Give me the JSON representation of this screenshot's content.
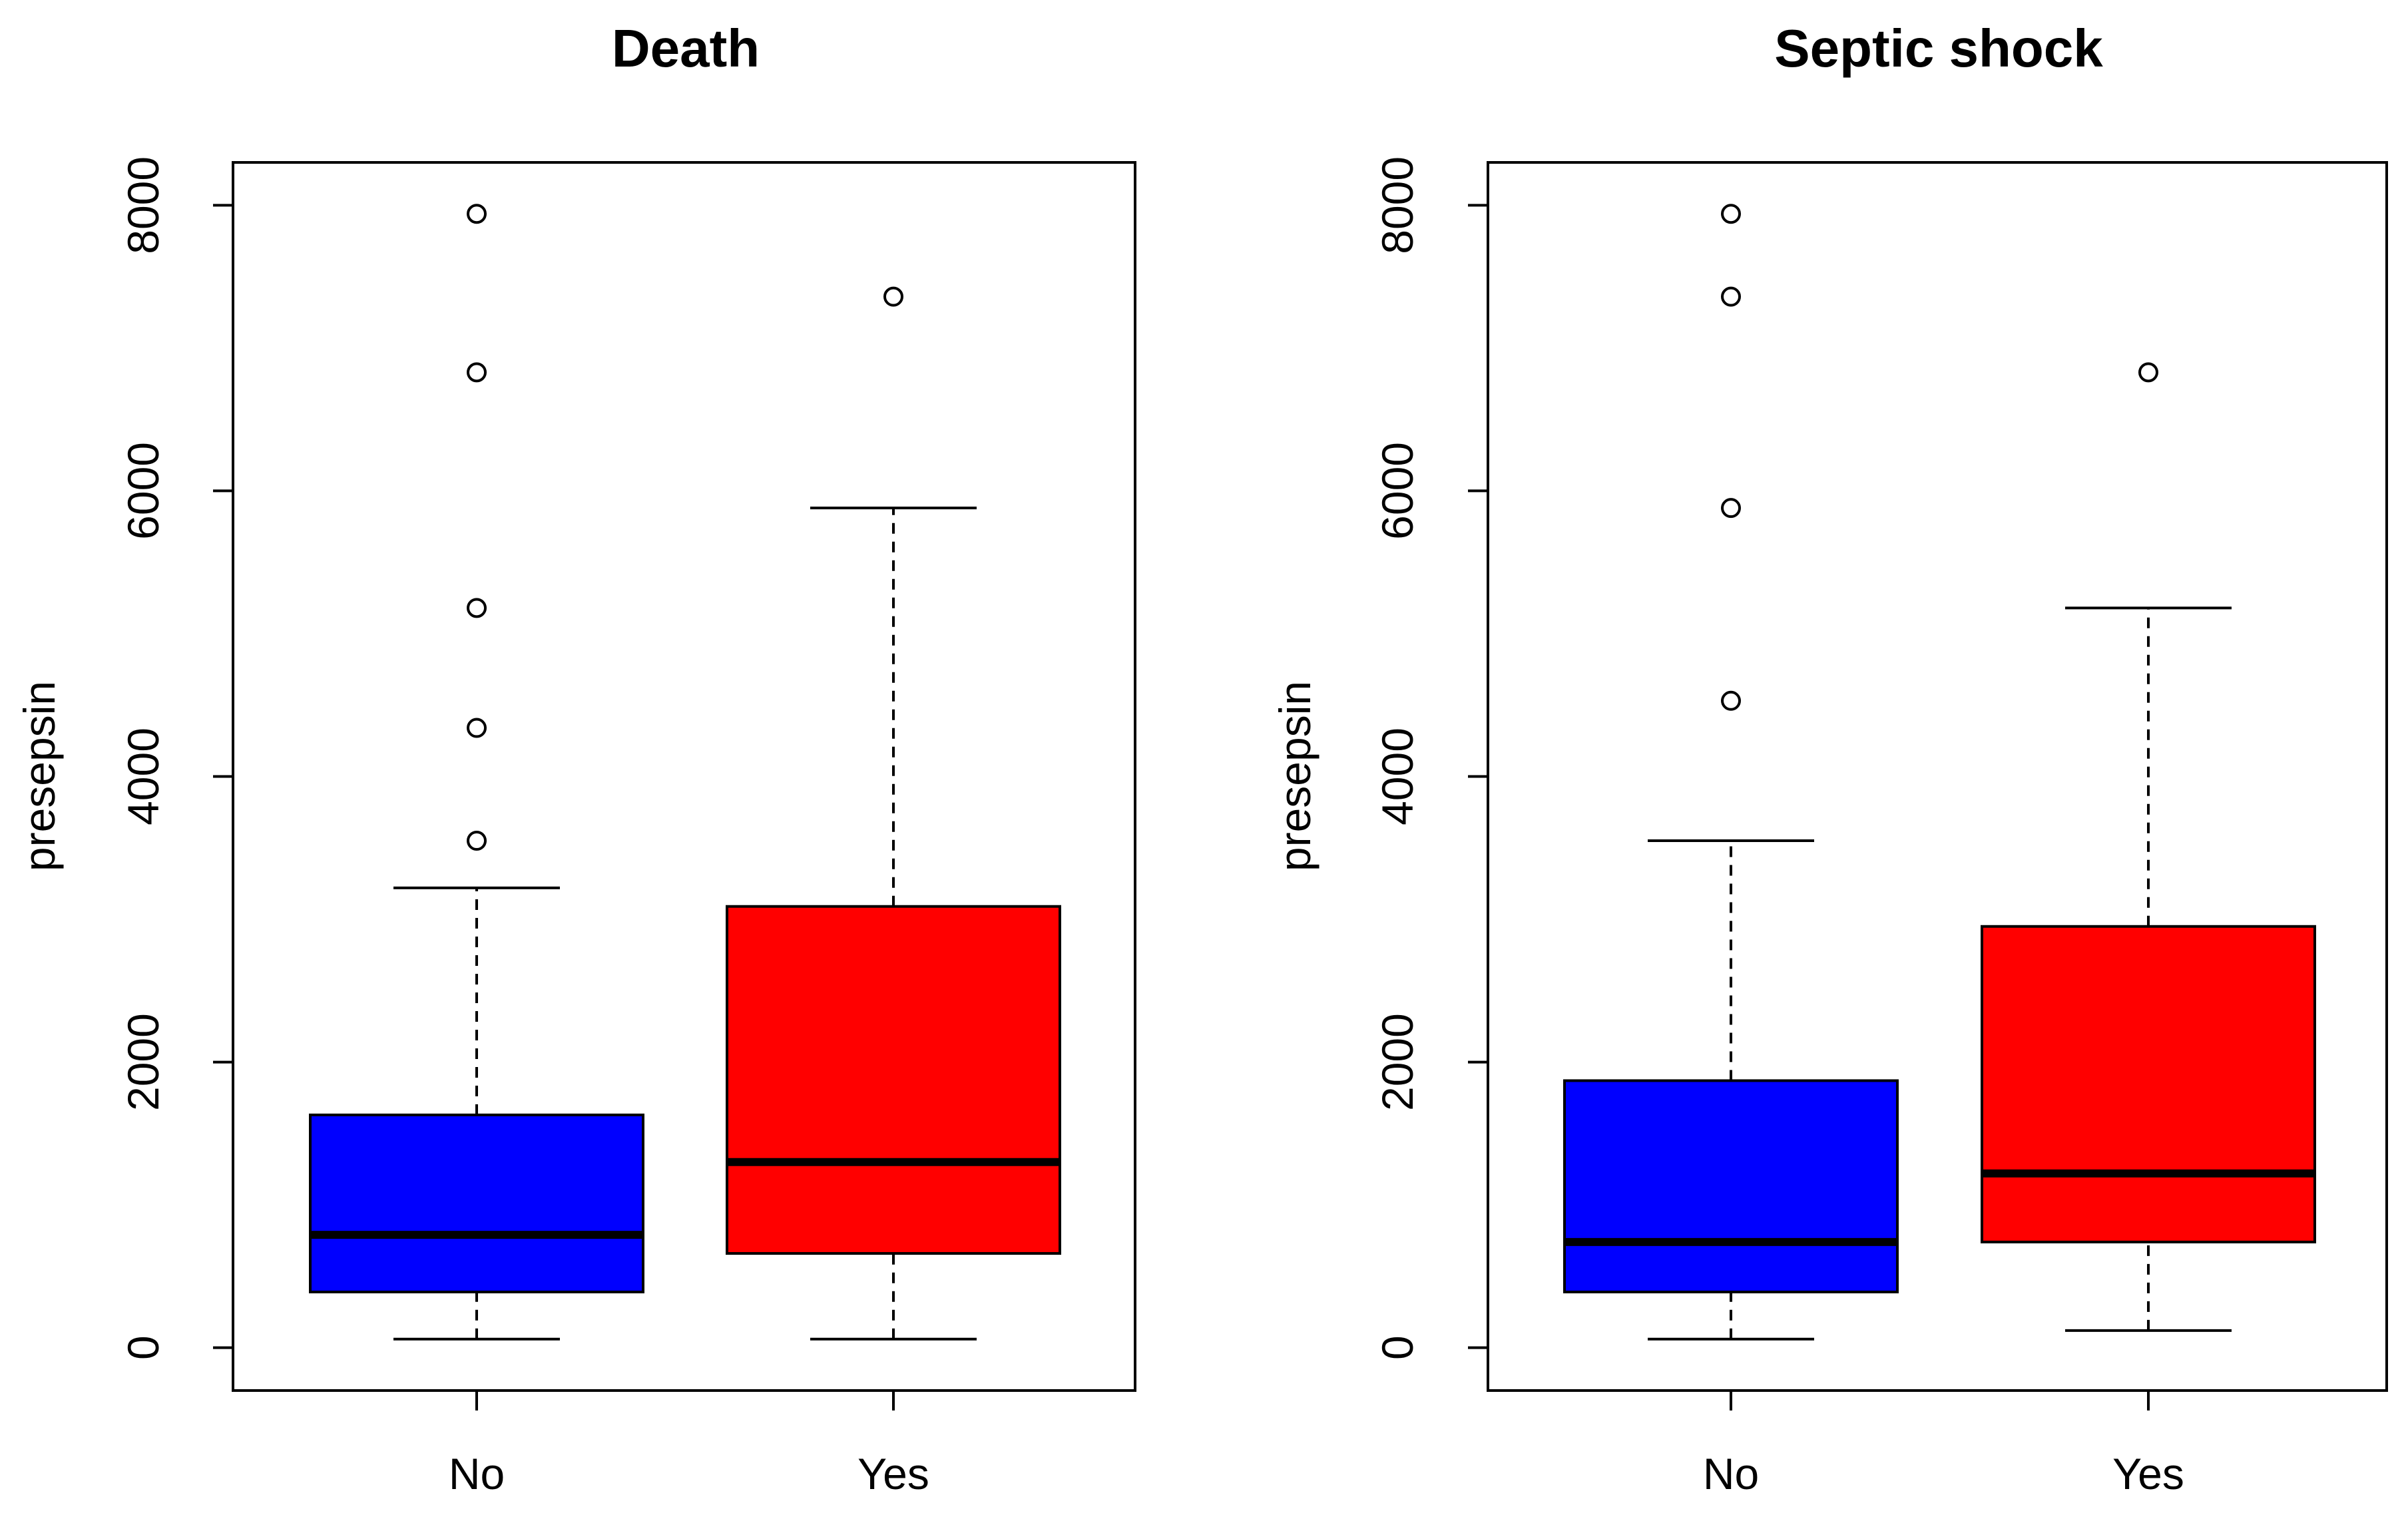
{
  "colors": {
    "no": "#0000ff",
    "yes": "#ff0000",
    "ink": "#000000",
    "background": "#ffffff"
  },
  "chart_data": [
    {
      "type": "boxplot",
      "title": "Death",
      "xlabel": "",
      "ylabel": "presepsin",
      "ylim": [
        -300,
        8300
      ],
      "yticks": [
        0,
        2000,
        4000,
        6000,
        8000
      ],
      "yticklabels": [
        "0",
        "2000",
        "4000",
        "6000",
        "8000"
      ],
      "categories": [
        "No",
        "Yes"
      ],
      "boxes": [
        {
          "label": "No",
          "color": "#0000ff",
          "whisker_low": 60,
          "q1": 390,
          "median": 790,
          "q3": 1630,
          "whisker_high": 3220,
          "outliers": [
            3550,
            4340,
            5180,
            6830,
            7940
          ]
        },
        {
          "label": "Yes",
          "color": "#ff0000",
          "whisker_low": 60,
          "q1": 660,
          "median": 1300,
          "q3": 3090,
          "whisker_high": 5880,
          "outliers": [
            7360
          ]
        }
      ]
    },
    {
      "type": "boxplot",
      "title": "Septic shock",
      "xlabel": "",
      "ylabel": "presepsin",
      "ylim": [
        -300,
        8300
      ],
      "yticks": [
        0,
        2000,
        4000,
        6000,
        8000
      ],
      "yticklabels": [
        "0",
        "2000",
        "4000",
        "6000",
        "8000"
      ],
      "categories": [
        "No",
        "Yes"
      ],
      "boxes": [
        {
          "label": "No",
          "color": "#0000ff",
          "whisker_low": 60,
          "q1": 390,
          "median": 740,
          "q3": 1870,
          "whisker_high": 3550,
          "outliers": [
            4530,
            5880,
            7360,
            7940
          ]
        },
        {
          "label": "Yes",
          "color": "#ff0000",
          "whisker_low": 120,
          "q1": 740,
          "median": 1220,
          "q3": 2950,
          "whisker_high": 5180,
          "outliers": [
            6830
          ]
        }
      ]
    }
  ]
}
